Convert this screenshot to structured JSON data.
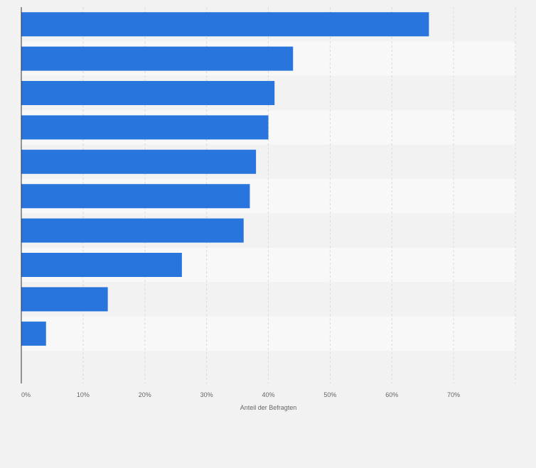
{
  "chart_data": {
    "type": "bar",
    "orientation": "horizontal",
    "categories": [
      "",
      "",
      "",
      "",
      "",
      "",
      "",
      "",
      "",
      ""
    ],
    "values": [
      66,
      44,
      41,
      40,
      38,
      37,
      36,
      26,
      14,
      4
    ],
    "unit": "%",
    "xlabel": "Anteil der Befragten",
    "ylabel": "",
    "xlim": [
      0,
      80
    ],
    "x_tick_labels": [
      "0%",
      "10%",
      "20%",
      "30%",
      "40%",
      "50%",
      "60%",
      "70%"
    ],
    "grid": true,
    "legend": "none",
    "colors": {
      "bar": "#2876dd",
      "band_light": "#f8f8f8",
      "band_dark": "#f2f2f2",
      "grid": "#d9d9d9",
      "axis": "#333333",
      "text": "#666666"
    }
  }
}
